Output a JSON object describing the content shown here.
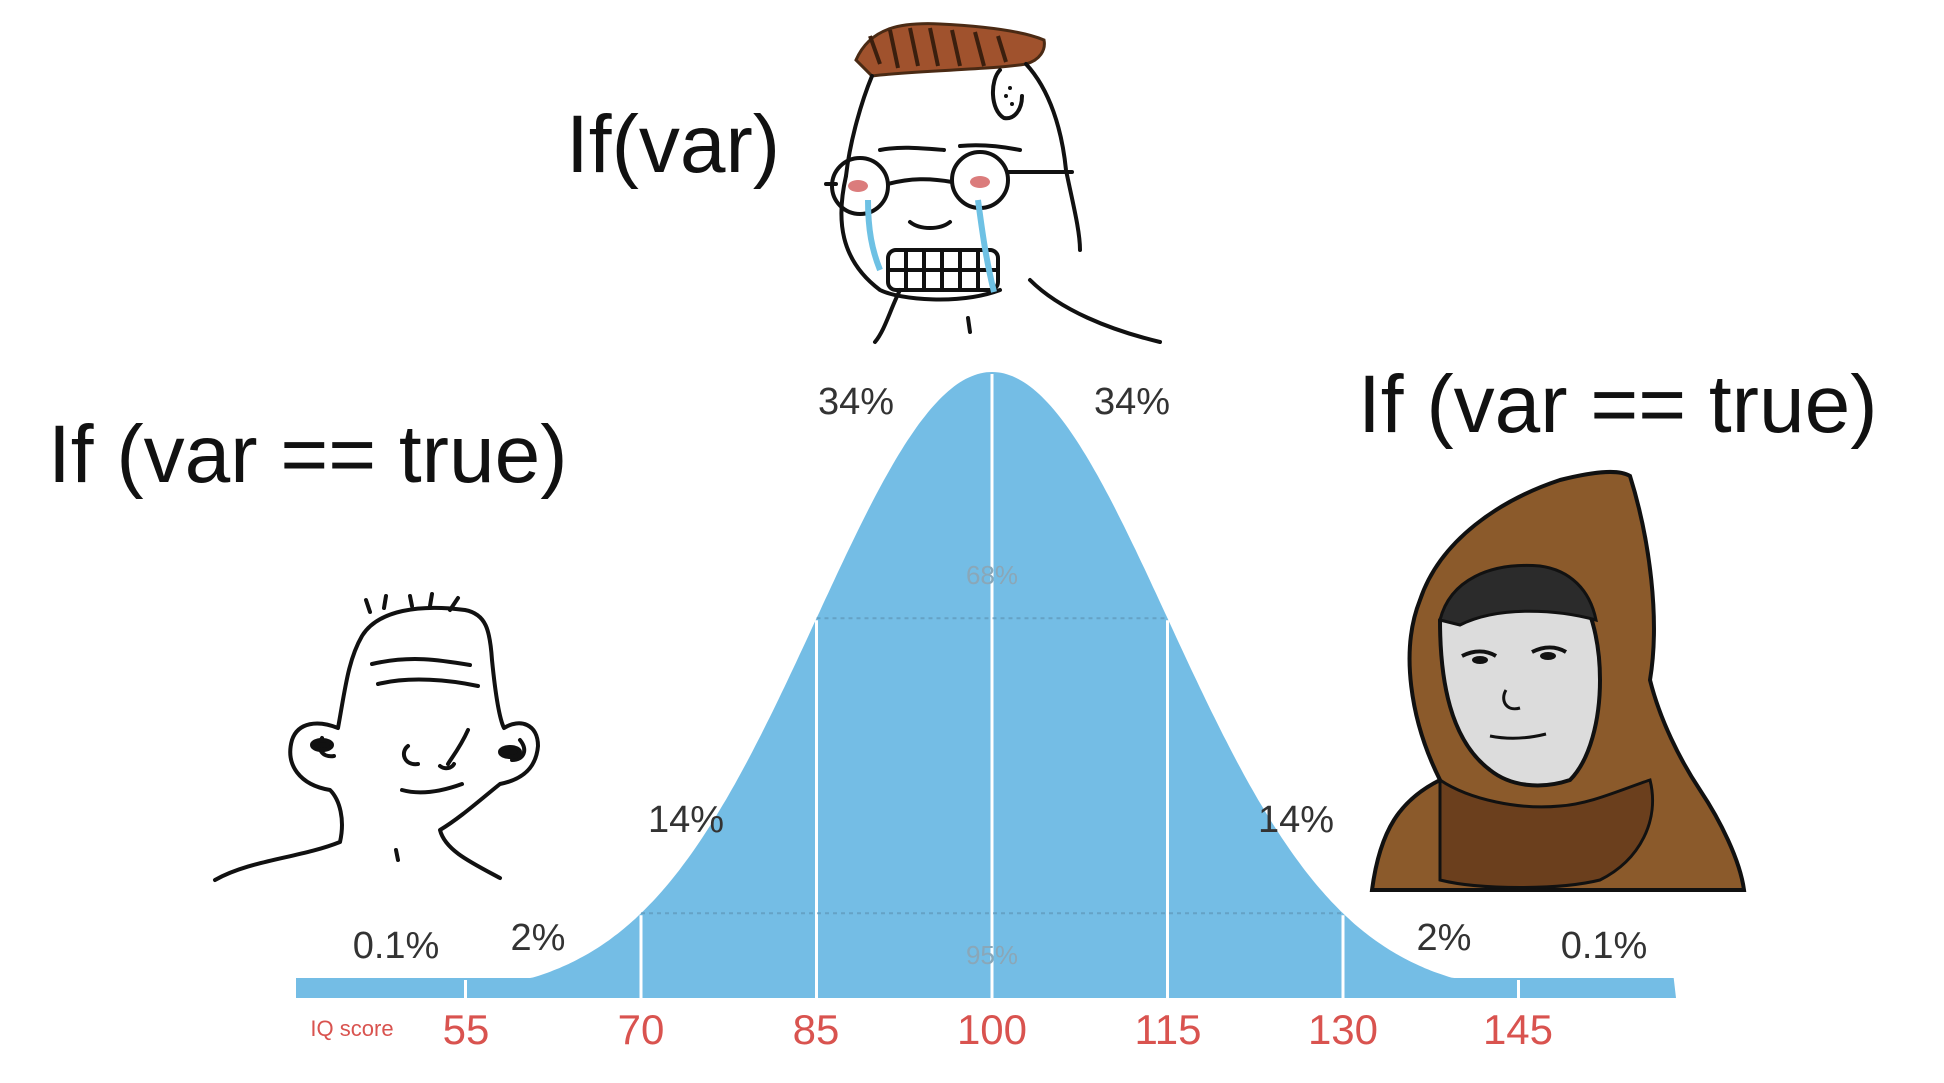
{
  "meme": {
    "top_caption": "If(var)",
    "left_caption": "If (var == true)",
    "right_caption": "If (var == true)",
    "characters": {
      "left": "simple-wojak-face-icon",
      "middle": "crying-nerd-wojak-icon",
      "right": "hooded-monk-icon"
    }
  },
  "chart_data": {
    "type": "area",
    "x_axis_label": "IQ score",
    "x_ticks": [
      "55",
      "70",
      "85",
      "100",
      "115",
      "130",
      "145"
    ],
    "band_labels": [
      "0.1%",
      "2%",
      "14%",
      "34%",
      "34%",
      "14%",
      "2%",
      "0.1%"
    ],
    "inner_interval_labels": [
      "68%",
      "95%"
    ],
    "colors": {
      "fill": "#74bde5",
      "ticks": "#d9534f",
      "band_text": "#333333",
      "interval_text": "#8aa7b8"
    }
  }
}
